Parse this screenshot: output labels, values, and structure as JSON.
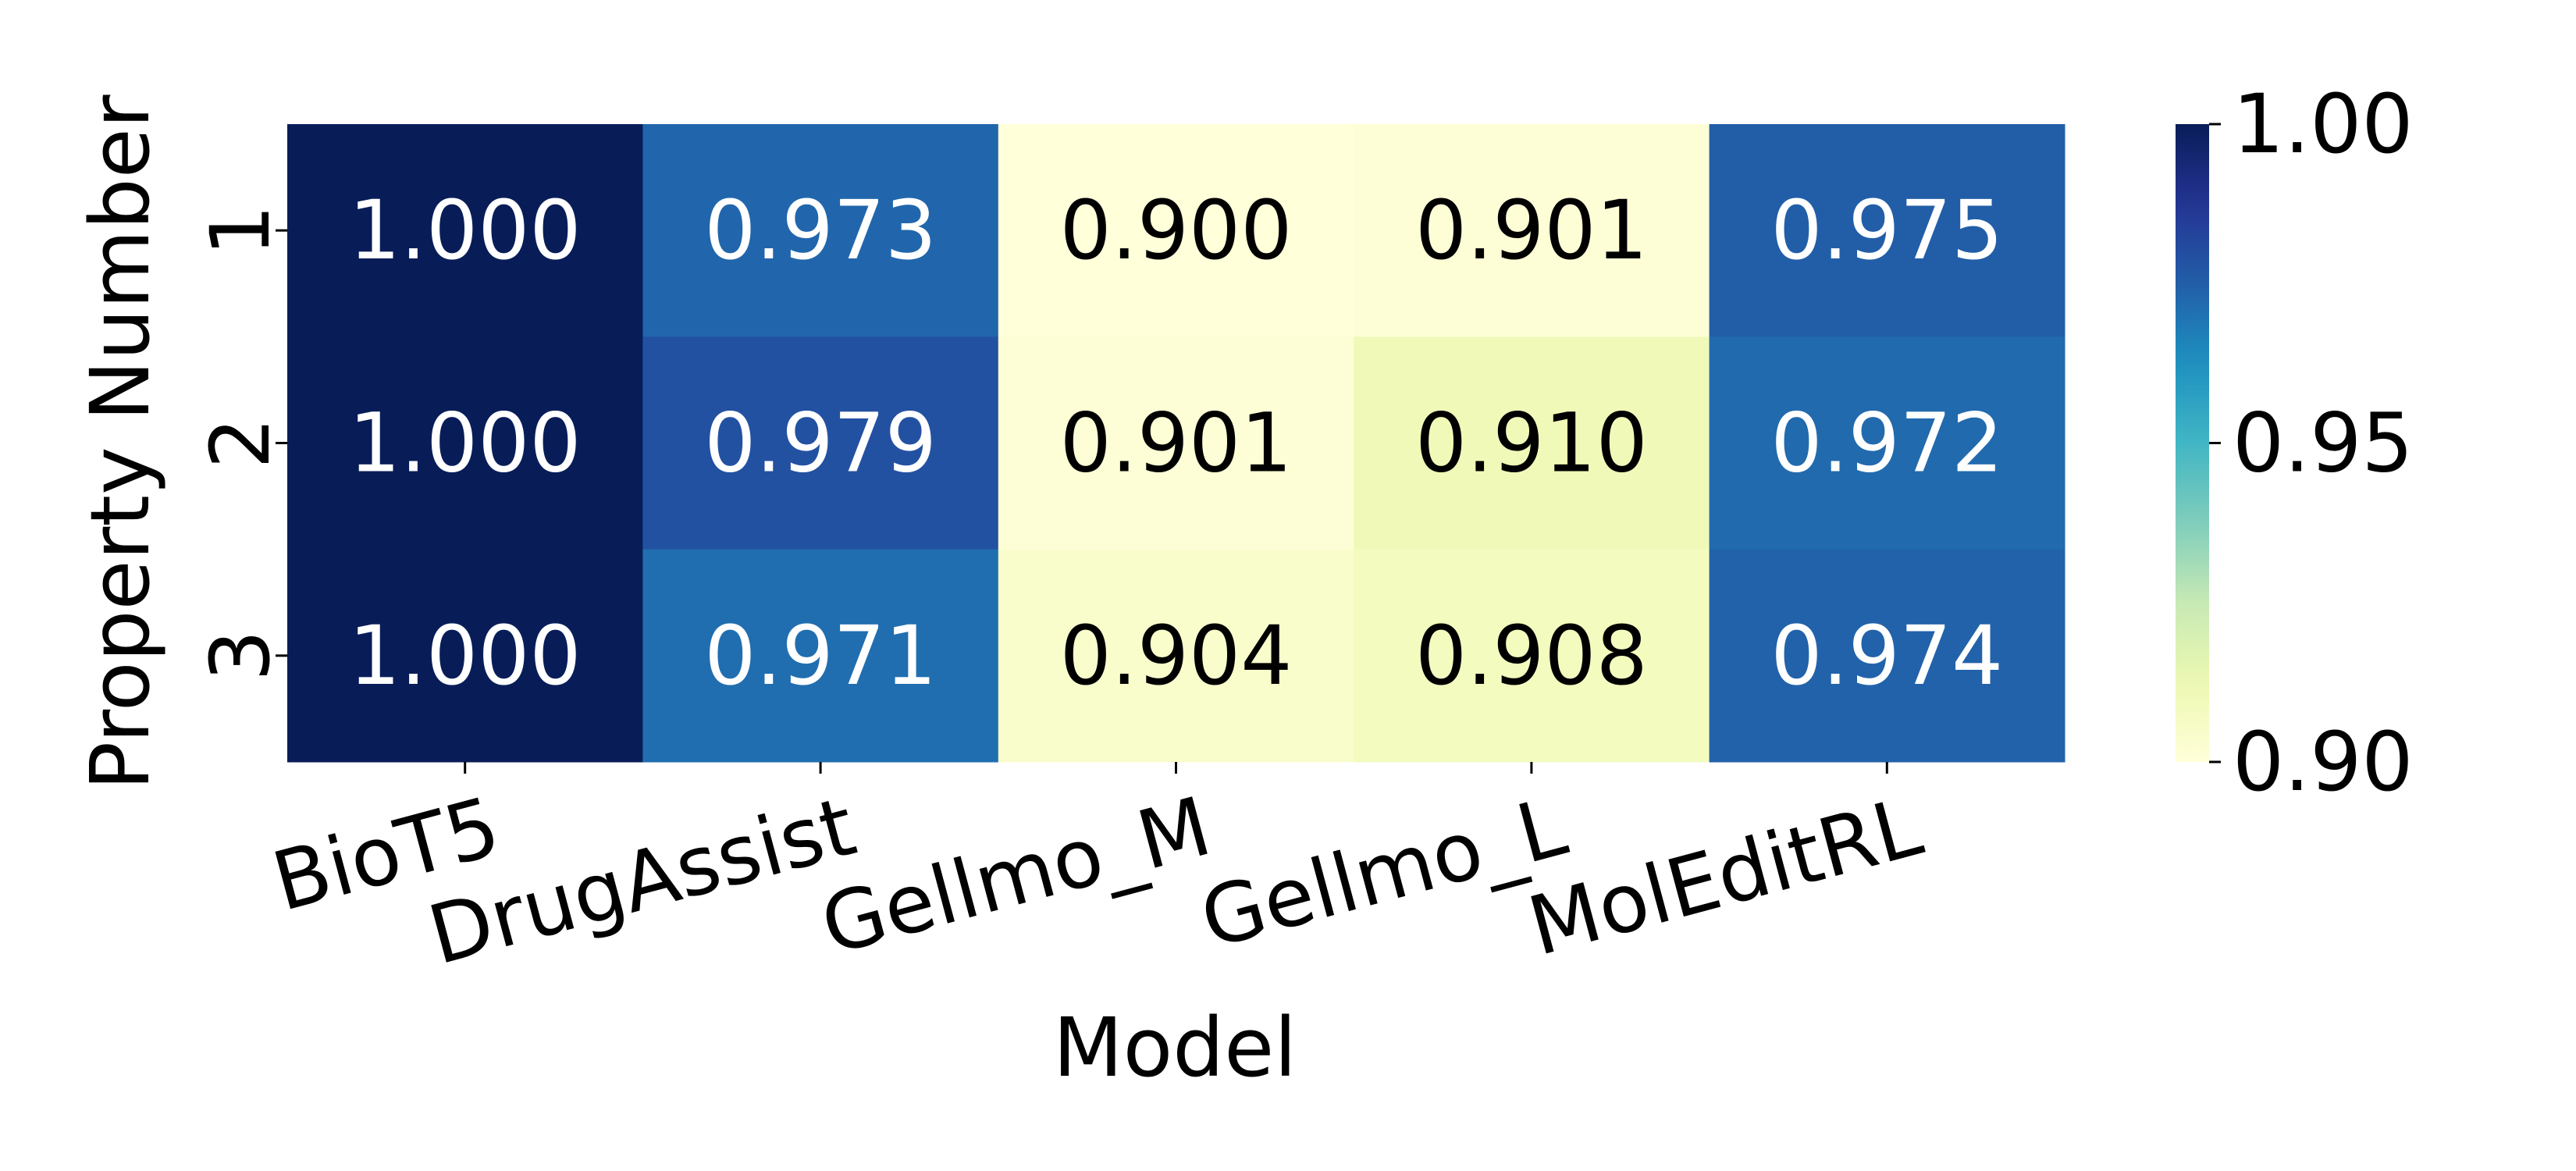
{
  "chart_data": {
    "type": "heatmap",
    "x_label": "Model",
    "y_label": "Property Number",
    "x_categories": [
      "BioT5",
      "DrugAssist",
      "Gellmo_M",
      "Gellmo_L",
      "MolEditRL"
    ],
    "y_categories": [
      "1",
      "2",
      "3"
    ],
    "values": [
      [
        1.0,
        0.973,
        0.9,
        0.901,
        0.975
      ],
      [
        1.0,
        0.979,
        0.901,
        0.91,
        0.972
      ],
      [
        1.0,
        0.971,
        0.904,
        0.908,
        0.974
      ]
    ],
    "value_labels": [
      [
        "1.000",
        "0.973",
        "0.900",
        "0.901",
        "0.975"
      ],
      [
        "1.000",
        "0.979",
        "0.901",
        "0.910",
        "0.972"
      ],
      [
        "1.000",
        "0.971",
        "0.904",
        "0.908",
        "0.974"
      ]
    ],
    "colormap": "YlGnBu",
    "clim": [
      0.9,
      1.0
    ],
    "cticks": [
      {
        "value": 0.9,
        "label": "0.90"
      },
      {
        "value": 0.95,
        "label": "0.95"
      },
      {
        "value": 1.0,
        "label": "1.00"
      }
    ]
  }
}
